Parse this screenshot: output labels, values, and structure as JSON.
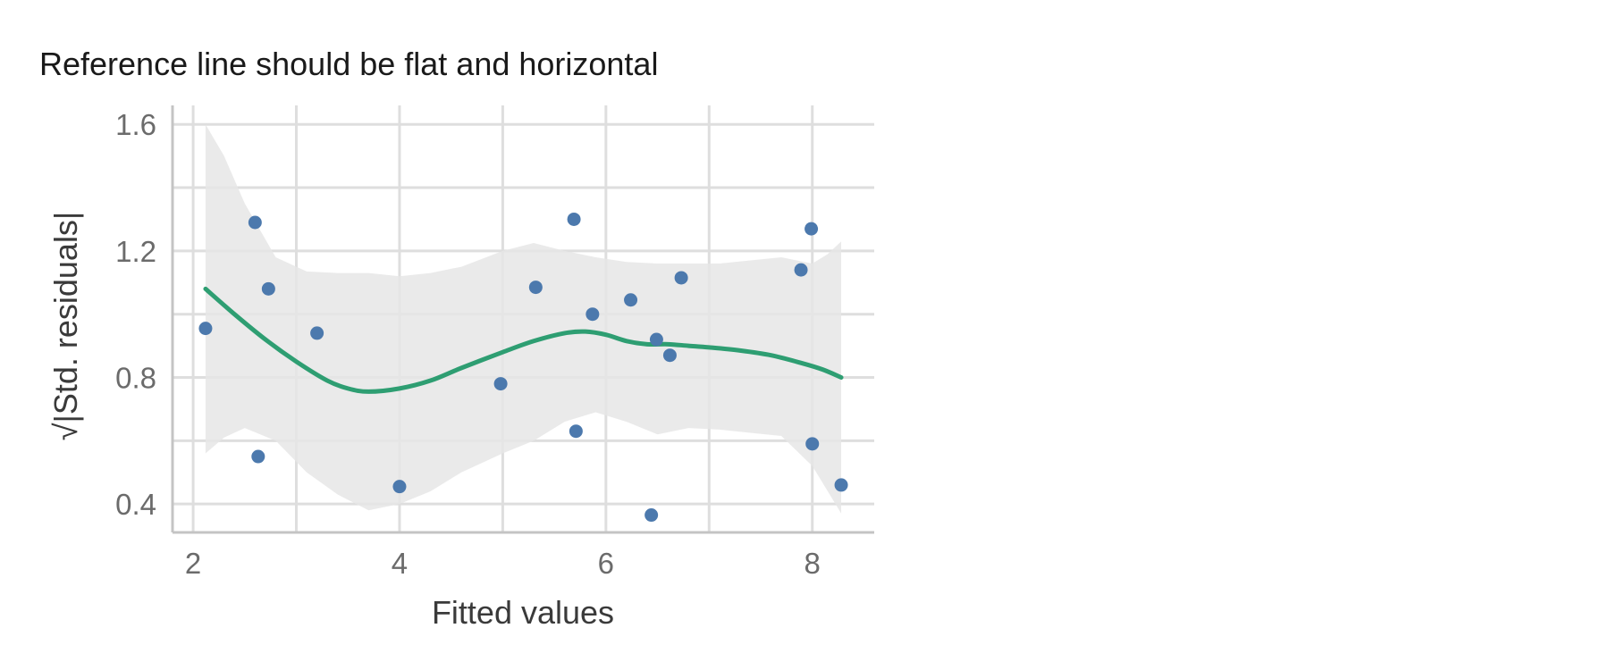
{
  "colors": {
    "points": "#4c79ad",
    "smooth_line": "#2e9e72",
    "confidence_band": "#e6e6e6",
    "grid": "#dedede",
    "axis_line": "#c4c4c4",
    "background": "#ffffff"
  },
  "chart_data": {
    "type": "scatter",
    "title": "Reference line should be flat and horizontal",
    "xlabel": "Fitted values",
    "ylabel": "√|Std. residuals|",
    "xlim": [
      1.8,
      8.6
    ],
    "ylim": [
      0.31,
      1.66
    ],
    "xticks": [
      2,
      4,
      6,
      8
    ],
    "xtick_labels": [
      "2",
      "4",
      "6",
      "8"
    ],
    "yticks": [
      0.4,
      0.8,
      1.2,
      1.6
    ],
    "ytick_labels": [
      "0.4",
      "0.8",
      "1.2",
      "1.6"
    ],
    "grid": true,
    "points": {
      "x": [
        2.12,
        2.6,
        2.63,
        2.73,
        3.2,
        4.0,
        4.98,
        5.32,
        5.69,
        5.71,
        5.87,
        6.24,
        6.44,
        6.49,
        6.62,
        6.73,
        7.89,
        7.99,
        8.0,
        8.28
      ],
      "y": [
        0.955,
        1.29,
        0.55,
        1.08,
        0.94,
        0.455,
        0.78,
        1.085,
        1.3,
        0.63,
        1.0,
        1.045,
        0.365,
        0.92,
        0.87,
        1.115,
        1.14,
        1.27,
        0.59,
        0.46
      ]
    },
    "smooth": {
      "x": [
        2.12,
        2.4,
        2.7,
        3.0,
        3.3,
        3.5,
        3.7,
        4.0,
        4.3,
        4.6,
        5.0,
        5.3,
        5.6,
        5.8,
        6.0,
        6.2,
        6.4,
        6.6,
        6.8,
        7.0,
        7.3,
        7.6,
        7.9,
        8.1,
        8.28
      ],
      "y": [
        1.08,
        1.0,
        0.92,
        0.85,
        0.79,
        0.765,
        0.755,
        0.765,
        0.79,
        0.83,
        0.88,
        0.915,
        0.94,
        0.945,
        0.935,
        0.915,
        0.905,
        0.905,
        0.9,
        0.895,
        0.885,
        0.87,
        0.845,
        0.825,
        0.8
      ]
    },
    "band": {
      "x": [
        2.12,
        2.3,
        2.5,
        2.8,
        3.1,
        3.4,
        3.7,
        4.0,
        4.3,
        4.6,
        5.0,
        5.3,
        5.6,
        5.9,
        6.2,
        6.5,
        6.8,
        7.1,
        7.4,
        7.7,
        8.0,
        8.15,
        8.28
      ],
      "upper": [
        1.6,
        1.5,
        1.35,
        1.18,
        1.135,
        1.13,
        1.13,
        1.12,
        1.13,
        1.15,
        1.2,
        1.225,
        1.2,
        1.18,
        1.165,
        1.16,
        1.16,
        1.16,
        1.17,
        1.18,
        1.16,
        1.19,
        1.23
      ],
      "lower": [
        0.56,
        0.61,
        0.64,
        0.6,
        0.5,
        0.43,
        0.38,
        0.4,
        0.44,
        0.5,
        0.56,
        0.6,
        0.66,
        0.69,
        0.66,
        0.62,
        0.64,
        0.635,
        0.625,
        0.615,
        0.52,
        0.44,
        0.37
      ]
    }
  }
}
